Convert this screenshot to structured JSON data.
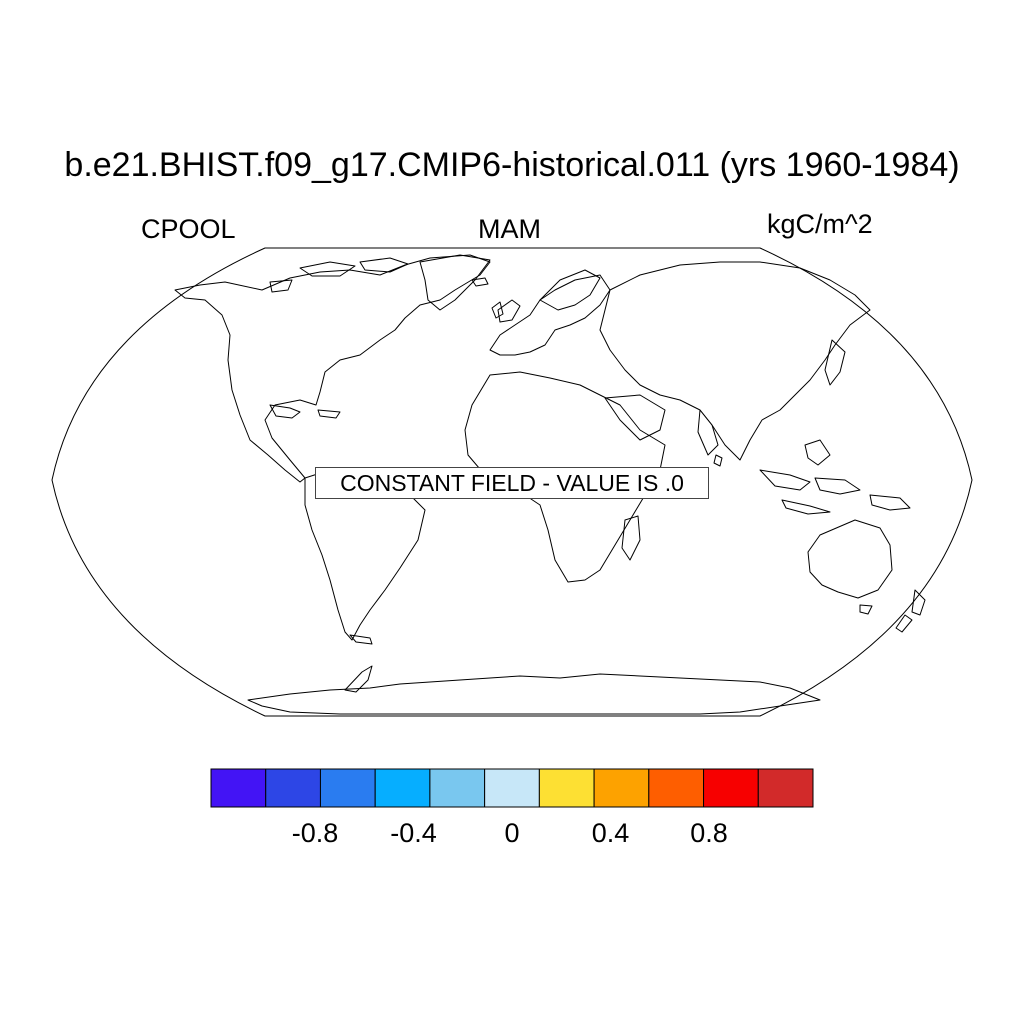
{
  "title": "b.e21.BHIST.f09_g17.CMIP6-historical.011 (yrs 1960-1984)",
  "left_label": "CPOOL",
  "center_label": "MAM",
  "right_label": "kgC/m^2",
  "constant_field_message": "CONSTANT FIELD - VALUE IS .0",
  "map": {
    "projection": "Robinson",
    "lat_range": [
      -90,
      90
    ],
    "lon_range": [
      -180,
      180
    ],
    "data_field": "constant",
    "data_value": 0
  },
  "colorbar": {
    "colors": [
      "#4314f5",
      "#2d46e6",
      "#2a7cf0",
      "#06aeff",
      "#79c7ef",
      "#c7e7f8",
      "#fde033",
      "#fda200",
      "#fe5e00",
      "#f70000",
      "#d22a2a"
    ],
    "tick_values": [
      -0.8,
      -0.4,
      0,
      0.4,
      0.8
    ],
    "tick_labels": [
      "-0.8",
      "-0.4",
      "0",
      "0.4",
      "0.8"
    ],
    "range": [
      -1.0,
      1.0
    ]
  }
}
